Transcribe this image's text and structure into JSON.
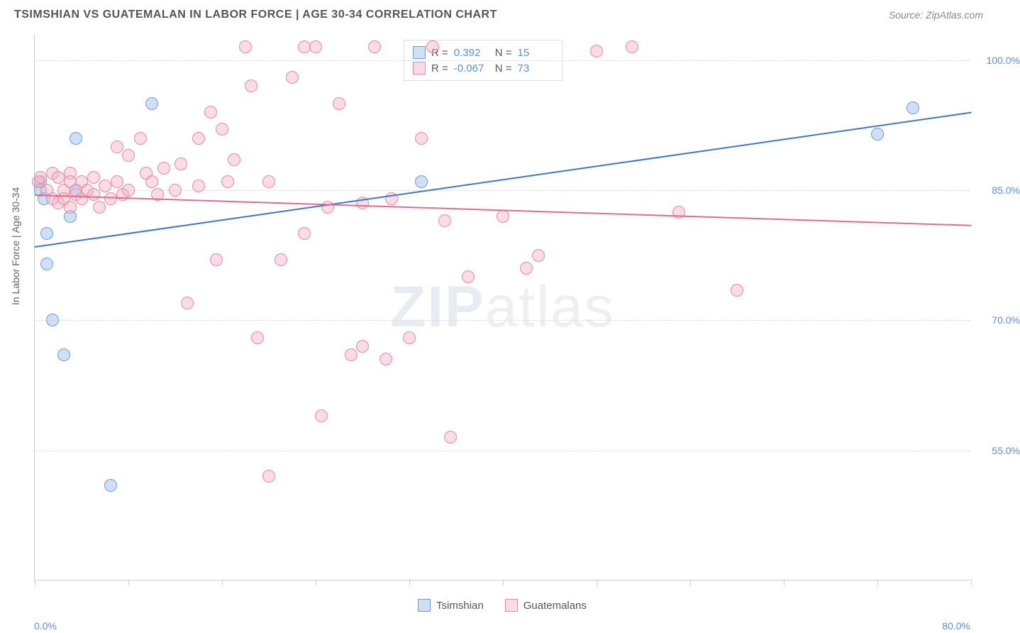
{
  "header": {
    "title": "TSIMSHIAN VS GUATEMALAN IN LABOR FORCE | AGE 30-34 CORRELATION CHART",
    "source": "Source: ZipAtlas.com"
  },
  "watermark": {
    "prefix": "ZIP",
    "suffix": "atlas"
  },
  "y_axis": {
    "title": "In Labor Force | Age 30-34",
    "ticks": [
      {
        "value": 55.0,
        "label": "55.0%"
      },
      {
        "value": 70.0,
        "label": "70.0%"
      },
      {
        "value": 85.0,
        "label": "85.0%"
      },
      {
        "value": 100.0,
        "label": "100.0%"
      }
    ],
    "min": 40.0,
    "max": 103.0
  },
  "x_axis": {
    "min_label": "0.0%",
    "max_label": "80.0%",
    "min": 0.0,
    "max": 80.0,
    "tick_positions": [
      0,
      8,
      16,
      24,
      32,
      40,
      48,
      56,
      64,
      72,
      80
    ]
  },
  "chart": {
    "type": "scatter",
    "background_color": "#ffffff",
    "grid_color": "#dddddd",
    "axis_color": "#cccccc",
    "marker_radius": 9,
    "marker_stroke_width": 1.5,
    "series": [
      {
        "id": "tsimshian",
        "label": "Tsimshian",
        "R": "0.392",
        "N": "15",
        "fill": "rgba(148, 187, 233, 0.45)",
        "stroke": "#6a9edb",
        "line_color": "#3b78c9",
        "trend": {
          "x1": 0,
          "y1": 78.5,
          "x2": 80,
          "y2": 94.0
        },
        "points": [
          {
            "x": 0.5,
            "y": 86.0
          },
          {
            "x": 0.5,
            "y": 85.0
          },
          {
            "x": 0.8,
            "y": 84.0
          },
          {
            "x": 1.0,
            "y": 80.0
          },
          {
            "x": 1.0,
            "y": 76.5
          },
          {
            "x": 1.5,
            "y": 70.0
          },
          {
            "x": 2.5,
            "y": 66.0
          },
          {
            "x": 3.0,
            "y": 82.0
          },
          {
            "x": 3.5,
            "y": 91.0
          },
          {
            "x": 3.5,
            "y": 85.0
          },
          {
            "x": 6.5,
            "y": 51.0
          },
          {
            "x": 10.0,
            "y": 95.0
          },
          {
            "x": 33.0,
            "y": 86.0
          },
          {
            "x": 72.0,
            "y": 91.5
          },
          {
            "x": 75.0,
            "y": 94.5
          }
        ]
      },
      {
        "id": "guatemalans",
        "label": "Guatemalans",
        "R": "-0.067",
        "N": "73",
        "fill": "rgba(245, 178, 195, 0.45)",
        "stroke": "#e68aa3",
        "line_color": "#e26b8f",
        "trend": {
          "x1": 0,
          "y1": 84.5,
          "x2": 80,
          "y2": 81.0
        },
        "points": [
          {
            "x": 0.3,
            "y": 86.0
          },
          {
            "x": 0.5,
            "y": 86.5
          },
          {
            "x": 1.0,
            "y": 85.0
          },
          {
            "x": 1.5,
            "y": 87.0
          },
          {
            "x": 1.5,
            "y": 84.0
          },
          {
            "x": 2.0,
            "y": 86.5
          },
          {
            "x": 2.0,
            "y": 83.5
          },
          {
            "x": 2.5,
            "y": 85.0
          },
          {
            "x": 2.5,
            "y": 84.0
          },
          {
            "x": 3.0,
            "y": 87.0
          },
          {
            "x": 3.0,
            "y": 86.0
          },
          {
            "x": 3.0,
            "y": 83.0
          },
          {
            "x": 3.5,
            "y": 84.5
          },
          {
            "x": 4.0,
            "y": 86.0
          },
          {
            "x": 4.0,
            "y": 84.0
          },
          {
            "x": 4.5,
            "y": 85.0
          },
          {
            "x": 5.0,
            "y": 86.5
          },
          {
            "x": 5.0,
            "y": 84.5
          },
          {
            "x": 5.5,
            "y": 83.0
          },
          {
            "x": 6.0,
            "y": 85.5
          },
          {
            "x": 6.5,
            "y": 84.0
          },
          {
            "x": 7.0,
            "y": 90.0
          },
          {
            "x": 7.0,
            "y": 86.0
          },
          {
            "x": 7.5,
            "y": 84.5
          },
          {
            "x": 8.0,
            "y": 89.0
          },
          {
            "x": 8.0,
            "y": 85.0
          },
          {
            "x": 9.0,
            "y": 91.0
          },
          {
            "x": 9.5,
            "y": 87.0
          },
          {
            "x": 10.0,
            "y": 86.0
          },
          {
            "x": 10.5,
            "y": 84.5
          },
          {
            "x": 11.0,
            "y": 87.5
          },
          {
            "x": 12.0,
            "y": 85.0
          },
          {
            "x": 12.5,
            "y": 88.0
          },
          {
            "x": 13.0,
            "y": 72.0
          },
          {
            "x": 14.0,
            "y": 91.0
          },
          {
            "x": 14.0,
            "y": 85.5
          },
          {
            "x": 15.0,
            "y": 94.0
          },
          {
            "x": 15.5,
            "y": 77.0
          },
          {
            "x": 16.0,
            "y": 92.0
          },
          {
            "x": 16.5,
            "y": 86.0
          },
          {
            "x": 17.0,
            "y": 88.5
          },
          {
            "x": 18.0,
            "y": 101.5
          },
          {
            "x": 18.5,
            "y": 97.0
          },
          {
            "x": 19.0,
            "y": 68.0
          },
          {
            "x": 20.0,
            "y": 52.0
          },
          {
            "x": 20.0,
            "y": 86.0
          },
          {
            "x": 21.0,
            "y": 77.0
          },
          {
            "x": 22.0,
            "y": 98.0
          },
          {
            "x": 23.0,
            "y": 101.5
          },
          {
            "x": 23.0,
            "y": 80.0
          },
          {
            "x": 24.0,
            "y": 101.5
          },
          {
            "x": 24.5,
            "y": 59.0
          },
          {
            "x": 25.0,
            "y": 83.0
          },
          {
            "x": 26.0,
            "y": 95.0
          },
          {
            "x": 27.0,
            "y": 66.0
          },
          {
            "x": 28.0,
            "y": 67.0
          },
          {
            "x": 28.0,
            "y": 83.5
          },
          {
            "x": 29.0,
            "y": 101.5
          },
          {
            "x": 30.0,
            "y": 65.5
          },
          {
            "x": 30.5,
            "y": 84.0
          },
          {
            "x": 32.0,
            "y": 68.0
          },
          {
            "x": 33.0,
            "y": 91.0
          },
          {
            "x": 34.0,
            "y": 101.5
          },
          {
            "x": 35.0,
            "y": 81.5
          },
          {
            "x": 35.5,
            "y": 56.5
          },
          {
            "x": 37.0,
            "y": 75.0
          },
          {
            "x": 40.0,
            "y": 82.0
          },
          {
            "x": 42.0,
            "y": 76.0
          },
          {
            "x": 43.0,
            "y": 77.5
          },
          {
            "x": 51.0,
            "y": 101.5
          },
          {
            "x": 55.0,
            "y": 82.5
          },
          {
            "x": 60.0,
            "y": 73.5
          },
          {
            "x": 48.0,
            "y": 101.0
          }
        ]
      }
    ]
  },
  "legend_bottom": [
    {
      "label": "Tsimshian",
      "fill": "rgba(148, 187, 233, 0.45)",
      "stroke": "#6a9edb"
    },
    {
      "label": "Guatemalans",
      "fill": "rgba(245, 178, 195, 0.45)",
      "stroke": "#e68aa3"
    }
  ]
}
